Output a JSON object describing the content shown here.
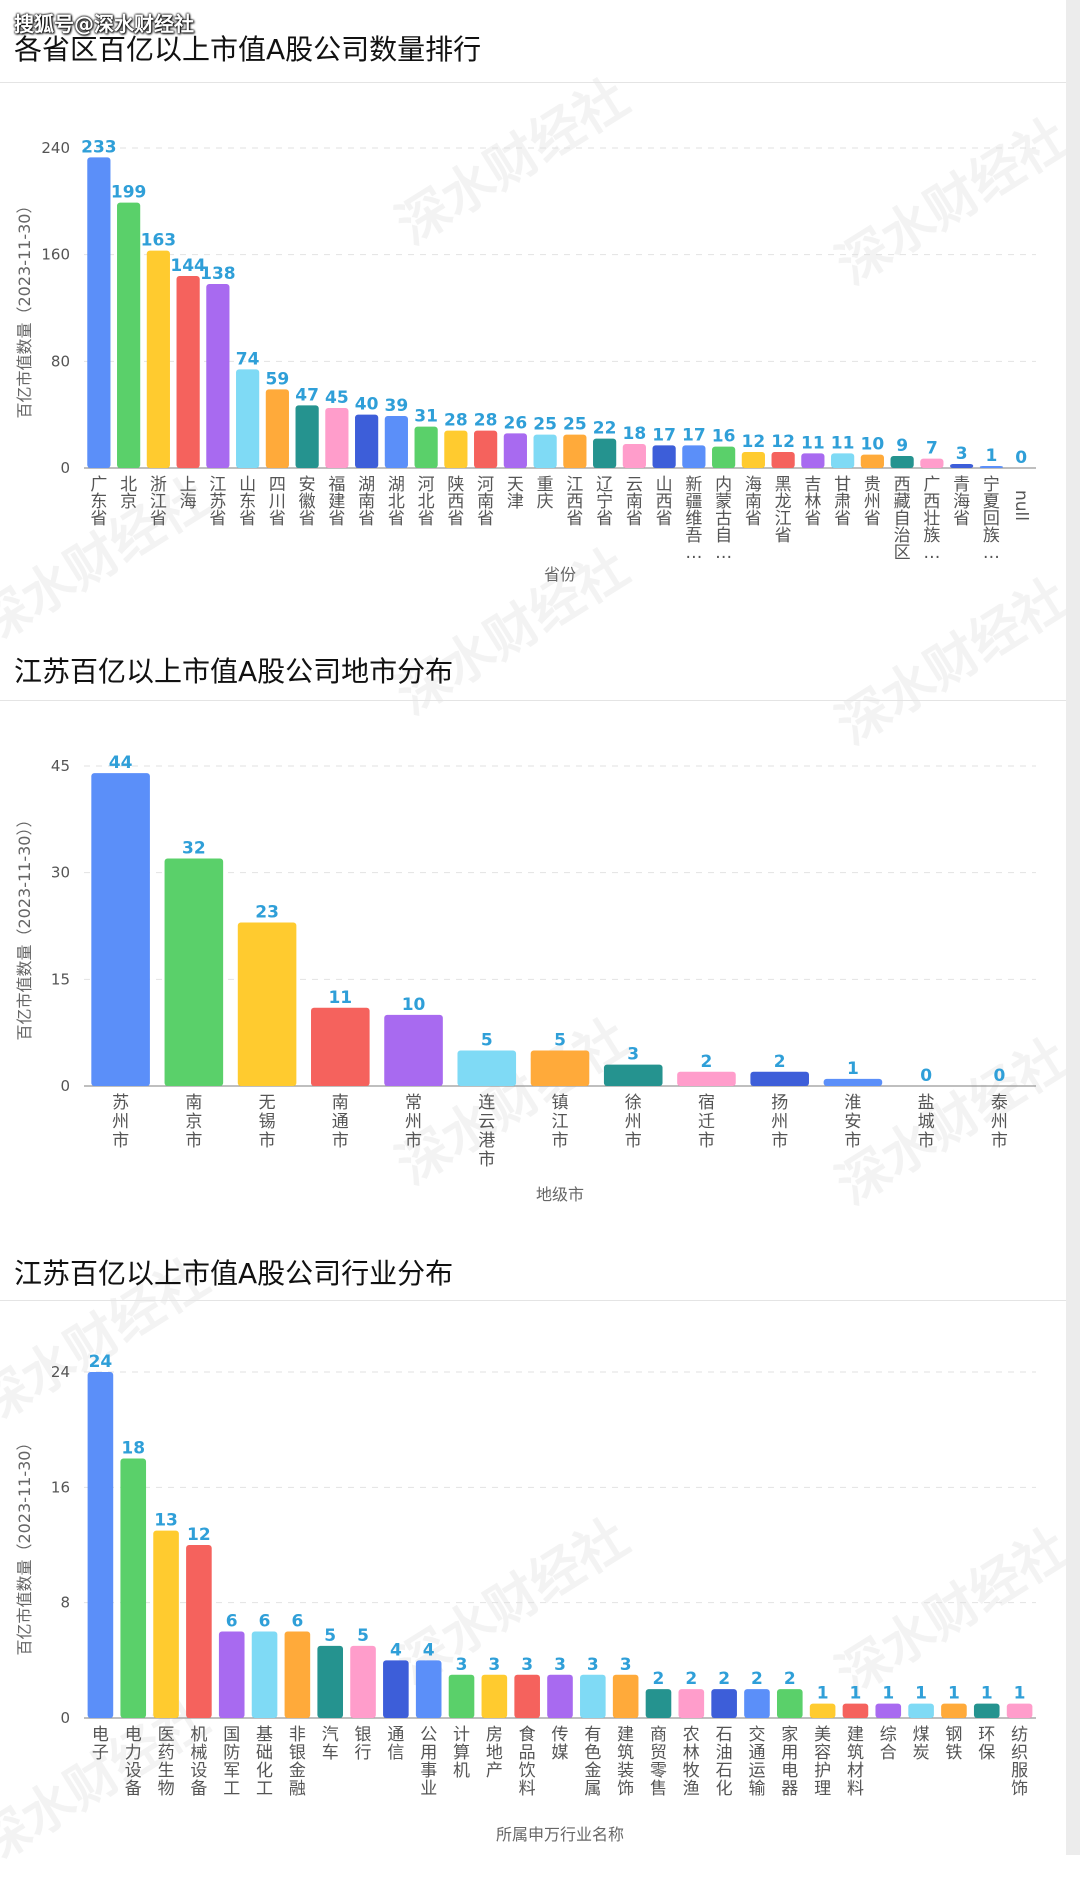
{
  "source": "搜狐号@深水财经社",
  "watermark": "深水财经社",
  "colors": [
    "#5b8ff9",
    "#5ad06a",
    "#ffcb2f",
    "#f5625d",
    "#a86af0",
    "#7fdaf5",
    "#ffaa3a",
    "#25938f",
    "#ff9dcb",
    "#3d5ed9"
  ],
  "chart_data": [
    {
      "type": "bar",
      "title": "各省区百亿以上市值A股公司数量排行",
      "xlabel": "省份",
      "ylabel": "百亿市值数量（2023-11-30）",
      "ylim": [
        0,
        240
      ],
      "yticks": [
        "240",
        "160",
        "80",
        "0"
      ],
      "categories": [
        "广东省",
        "北京",
        "浙江省",
        "上海",
        "江苏省",
        "山东省",
        "四川省",
        "安徽省",
        "福建省",
        "湖南省",
        "湖北省",
        "河北省",
        "陕西省",
        "河南省",
        "天津",
        "重庆",
        "江西省",
        "辽宁省",
        "云南省",
        "山西省",
        "新疆维吾…",
        "内蒙古自…",
        "海南省",
        "黑龙江省",
        "吉林省",
        "甘肃省",
        "贵州省",
        "西藏自治区",
        "广西壮族…",
        "青海省",
        "宁夏回族…",
        "null"
      ],
      "values": [
        233,
        199,
        163,
        144,
        138,
        74,
        59,
        47,
        45,
        40,
        39,
        31,
        28,
        28,
        26,
        25,
        25,
        22,
        18,
        17,
        17,
        16,
        12,
        12,
        11,
        11,
        10,
        9,
        7,
        3,
        1,
        0
      ]
    },
    {
      "type": "bar",
      "title": "江苏百亿以上市值A股公司地市分布",
      "xlabel": "地级市",
      "ylabel": "百亿市值数量（2023-11-30））",
      "ylim": [
        0,
        45
      ],
      "yticks": [
        "45",
        "30",
        "15",
        "0"
      ],
      "categories": [
        "苏州市",
        "南京市",
        "无锡市",
        "南通市",
        "常州市",
        "连云港市",
        "镇江市",
        "徐州市",
        "宿迁市",
        "扬州市",
        "淮安市",
        "盐城市",
        "泰州市"
      ],
      "values": [
        44,
        32,
        23,
        11,
        10,
        5,
        5,
        3,
        2,
        2,
        1,
        0,
        0
      ]
    },
    {
      "type": "bar",
      "title": "江苏百亿以上市值A股公司行业分布",
      "xlabel": "所属申万行业名称",
      "ylabel": "百亿市值数量（2023-11-30）",
      "ylim": [
        0,
        24
      ],
      "yticks": [
        "24",
        "16",
        "8",
        "0"
      ],
      "categories": [
        "电子",
        "电力设备",
        "医药生物",
        "机械设备",
        "国防军工",
        "基础化工",
        "非银金融",
        "汽车",
        "银行",
        "通信",
        "公用事业",
        "计算机",
        "房地产",
        "食品饮料",
        "传媒",
        "有色金属",
        "建筑装饰",
        "商贸零售",
        "农林牧渔",
        "石油石化",
        "交通运输",
        "家用电器",
        "美容护理",
        "建筑材料",
        "综合",
        "煤炭",
        "钢铁",
        "环保",
        "纺织服饰"
      ],
      "values": [
        24,
        18,
        13,
        12,
        6,
        6,
        6,
        5,
        5,
        4,
        4,
        3,
        3,
        3,
        3,
        3,
        3,
        2,
        2,
        2,
        2,
        2,
        1,
        1,
        1,
        1,
        1,
        1,
        1
      ]
    }
  ]
}
